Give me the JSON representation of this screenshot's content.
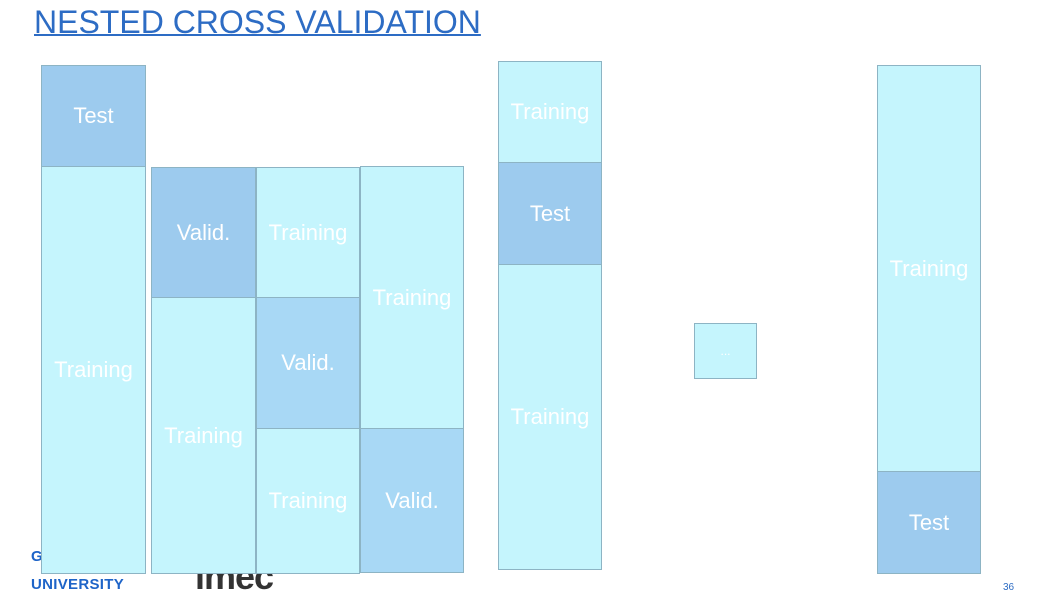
{
  "title": "NESTED CROSS VALIDATION",
  "columns": [
    {
      "blocks": [
        {
          "label": "Test"
        },
        {
          "label": "Training"
        }
      ]
    },
    {
      "blocks": [
        {
          "label": "Valid."
        },
        {
          "label": "Training"
        }
      ]
    },
    {
      "blocks": [
        {
          "label": "Training"
        },
        {
          "label": "Valid."
        },
        {
          "label": "Training"
        }
      ]
    },
    {
      "blocks": [
        {
          "label": "Training"
        },
        {
          "label": "Valid."
        }
      ]
    },
    {
      "blocks": [
        {
          "label": "Training"
        },
        {
          "label": "Test"
        },
        {
          "label": "Training"
        }
      ]
    },
    {
      "blocks": [
        {
          "label": "..."
        }
      ]
    },
    {
      "blocks": [
        {
          "label": "Training"
        },
        {
          "label": "Test"
        }
      ]
    }
  ],
  "footer": {
    "university": [
      "GHENT",
      "UNIVERSITY"
    ],
    "partner": "imec",
    "page_number": "36"
  }
}
